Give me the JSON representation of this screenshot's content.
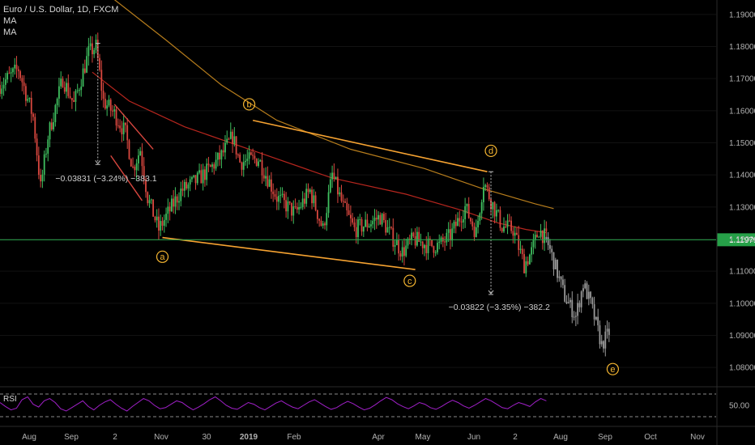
{
  "header": {
    "symbol_line": "Euro / U.S. Dollar, 1D, FXCM",
    "ma1_label": "MA",
    "ma2_label": "MA",
    "rsi_label": "RSI"
  },
  "colors": {
    "background": "#000000",
    "up_candle": "#3fbf5f",
    "down_candle": "#d9473f",
    "projection": "#9a9a9a",
    "ma_fast": "#b7261e",
    "ma_slow": "#b77d1c",
    "channel": "#f7a331",
    "wave_label": "#f7b731",
    "current_price": "#26a048",
    "rsi": "#a020c8"
  },
  "chart_data": {
    "type": "candlestick",
    "symbol": "Euro / U.S. Dollar",
    "interval": "1D",
    "source": "FXCM",
    "ylim": [
      1.0745,
      1.1945
    ],
    "y_ticks": [
      "1.19000",
      "1.18000",
      "1.17000",
      "1.16000",
      "1.15000",
      "1.14000",
      "1.13000",
      "1.12000",
      "1.11000",
      "1.10000",
      "1.09000",
      "1.08000"
    ],
    "x_ticks": [
      "Aug",
      "Sep",
      "2",
      "Nov",
      "30",
      "2019",
      "Feb",
      "Apr",
      "May",
      "Jun",
      "2",
      "Aug",
      "Sep",
      "Oct",
      "Nov"
    ],
    "current_price": "1.11979",
    "price_path": [
      {
        "t": 0,
        "p": 1.168
      },
      {
        "t": 10,
        "p": 1.173
      },
      {
        "t": 18,
        "p": 1.158
      },
      {
        "t": 22,
        "p": 1.136
      },
      {
        "t": 26,
        "p": 1.152
      },
      {
        "t": 34,
        "p": 1.17
      },
      {
        "t": 40,
        "p": 1.162
      },
      {
        "t": 48,
        "p": 1.178
      },
      {
        "t": 52,
        "p": 1.18
      },
      {
        "t": 56,
        "p": 1.163
      },
      {
        "t": 62,
        "p": 1.159
      },
      {
        "t": 68,
        "p": 1.153
      },
      {
        "t": 72,
        "p": 1.142
      },
      {
        "t": 76,
        "p": 1.148
      },
      {
        "t": 80,
        "p": 1.133
      },
      {
        "t": 86,
        "p": 1.123
      },
      {
        "t": 90,
        "p": 1.127
      },
      {
        "t": 98,
        "p": 1.135
      },
      {
        "t": 106,
        "p": 1.138
      },
      {
        "t": 114,
        "p": 1.142
      },
      {
        "t": 120,
        "p": 1.146
      },
      {
        "t": 126,
        "p": 1.152
      },
      {
        "t": 130,
        "p": 1.144
      },
      {
        "t": 140,
        "p": 1.145
      },
      {
        "t": 150,
        "p": 1.133
      },
      {
        "t": 160,
        "p": 1.128
      },
      {
        "t": 168,
        "p": 1.135
      },
      {
        "t": 175,
        "p": 1.123
      },
      {
        "t": 180,
        "p": 1.14
      },
      {
        "t": 186,
        "p": 1.13
      },
      {
        "t": 192,
        "p": 1.123
      },
      {
        "t": 200,
        "p": 1.125
      },
      {
        "t": 206,
        "p": 1.127
      },
      {
        "t": 212,
        "p": 1.121
      },
      {
        "t": 218,
        "p": 1.116
      },
      {
        "t": 224,
        "p": 1.12
      },
      {
        "t": 232,
        "p": 1.118
      },
      {
        "t": 238,
        "p": 1.118
      },
      {
        "t": 244,
        "p": 1.121
      },
      {
        "t": 252,
        "p": 1.13
      },
      {
        "t": 258,
        "p": 1.122
      },
      {
        "t": 262,
        "p": 1.138
      },
      {
        "t": 266,
        "p": 1.132
      },
      {
        "t": 272,
        "p": 1.124
      },
      {
        "t": 278,
        "p": 1.123
      },
      {
        "t": 284,
        "p": 1.112
      },
      {
        "t": 288,
        "p": 1.116
      },
      {
        "t": 292,
        "p": 1.123
      },
      {
        "t": 296,
        "p": 1.12
      }
    ],
    "projection_path": [
      {
        "t": 296,
        "p": 1.12
      },
      {
        "t": 300,
        "p": 1.113
      },
      {
        "t": 306,
        "p": 1.102
      },
      {
        "t": 312,
        "p": 1.096
      },
      {
        "t": 316,
        "p": 1.106
      },
      {
        "t": 320,
        "p": 1.1
      },
      {
        "t": 326,
        "p": 1.087
      },
      {
        "t": 330,
        "p": 1.091
      }
    ],
    "moving_averages": [
      {
        "name": "MA",
        "path": [
          {
            "t": 50,
            "p": 1.172
          },
          {
            "t": 70,
            "p": 1.163
          },
          {
            "t": 100,
            "p": 1.155
          },
          {
            "t": 140,
            "p": 1.147
          },
          {
            "t": 180,
            "p": 1.139
          },
          {
            "t": 220,
            "p": 1.134
          },
          {
            "t": 250,
            "p": 1.129
          },
          {
            "t": 270,
            "p": 1.125
          },
          {
            "t": 285,
            "p": 1.123
          },
          {
            "t": 296,
            "p": 1.122
          }
        ]
      },
      {
        "name": "MA",
        "path": [
          {
            "t": 60,
            "p": 1.1955
          },
          {
            "t": 90,
            "p": 1.182
          },
          {
            "t": 120,
            "p": 1.168
          },
          {
            "t": 150,
            "p": 1.157
          },
          {
            "t": 190,
            "p": 1.148
          },
          {
            "t": 230,
            "p": 1.142
          },
          {
            "t": 260,
            "p": 1.136
          },
          {
            "t": 290,
            "p": 1.131
          },
          {
            "t": 300,
            "p": 1.1295
          }
        ]
      }
    ],
    "channel_lines": [
      {
        "from": {
          "t": 88,
          "p": 1.1205
        },
        "to": {
          "t": 225,
          "p": 1.1105
        }
      },
      {
        "from": {
          "t": 137,
          "p": 1.157
        },
        "to": {
          "t": 264,
          "p": 1.141
        }
      }
    ],
    "abc_leg_lines": [
      {
        "from": {
          "t": 62,
          "p": 1.162
        },
        "to": {
          "t": 83,
          "p": 1.148
        }
      },
      {
        "from": {
          "t": 60,
          "p": 1.146
        },
        "to": {
          "t": 77,
          "p": 1.132
        }
      }
    ],
    "wave_labels": [
      {
        "label": "a",
        "t": 88,
        "p": 1.1145
      },
      {
        "label": "b",
        "t": 135,
        "p": 1.162
      },
      {
        "label": "c",
        "t": 222,
        "p": 1.107
      },
      {
        "label": "d",
        "t": 266,
        "p": 1.1475
      },
      {
        "label": "e",
        "t": 332,
        "p": 1.0795
      }
    ],
    "measurements": [
      {
        "text": "−0.03831 (−3.24%) −383.1",
        "t_from": 53,
        "p_from": 1.181,
        "p_to": 1.1435,
        "text_t": 30,
        "text_p": 1.138
      },
      {
        "text": "−0.03822 (−3.35%) −382.2",
        "t_from": 266,
        "p_from": 1.141,
        "p_to": 1.103,
        "text_t": 243,
        "text_p": 1.098
      }
    ],
    "rsi": {
      "label": "RSI",
      "ylim": [
        20,
        80
      ],
      "bands": [
        70,
        30
      ],
      "tick": "50.00",
      "values": [
        55,
        48,
        42,
        45,
        60,
        65,
        52,
        47,
        58,
        62,
        55,
        44,
        40,
        46,
        52,
        58,
        48,
        42,
        50,
        56,
        60,
        52,
        45,
        40,
        48,
        55,
        62,
        58,
        50,
        44,
        46,
        52,
        58,
        55,
        48,
        42,
        47,
        53,
        60,
        65,
        58,
        50,
        45,
        43,
        49,
        55,
        52,
        46,
        42,
        48,
        54,
        58,
        52,
        47,
        44,
        50,
        56,
        60,
        54,
        48,
        43,
        46,
        52,
        57,
        53,
        47,
        42,
        45,
        51,
        58,
        64,
        60,
        53,
        48,
        44,
        49,
        55,
        52,
        46,
        43,
        48,
        54,
        59,
        55,
        49,
        45,
        50,
        56,
        62,
        58,
        52,
        46,
        44,
        50,
        55,
        52,
        48,
        56,
        62,
        58
      ]
    }
  }
}
